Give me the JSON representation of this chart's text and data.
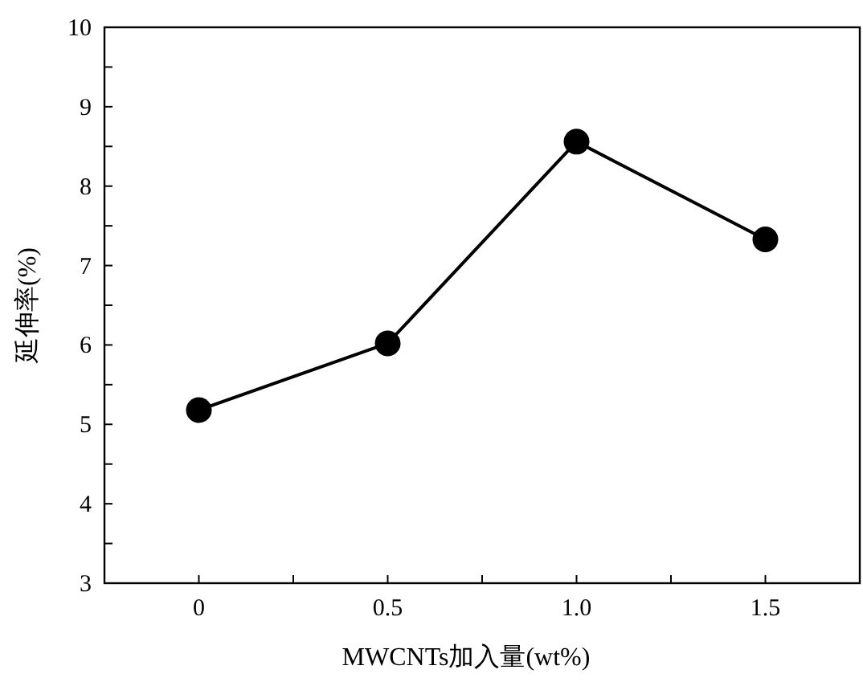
{
  "chart_data": {
    "type": "line",
    "xlabel": "MWCNTs加入量(wt%)",
    "ylabel": "延伸率(%)",
    "x": [
      0,
      0.5,
      1.0,
      1.5
    ],
    "series": [
      {
        "color": "#000000",
        "values": [
          5.18,
          6.02,
          8.56,
          7.33
        ]
      }
    ],
    "marker": "circle",
    "line_style": "solid",
    "grid": false,
    "xlim": [
      -0.25,
      1.75
    ],
    "xticks": [
      0,
      {
        "value": 0.25,
        "label": null
      },
      {
        "value": 0.5,
        "label": "0.5"
      },
      {
        "value": 0.75,
        "label": null
      },
      {
        "value": 1.0,
        "label": "1.0"
      },
      {
        "value": 1.25,
        "label": null
      },
      {
        "value": 1.5,
        "label": "1.5"
      }
    ],
    "ylim": [
      3,
      10
    ],
    "yticks": [
      3,
      {
        "value": 3.5,
        "label": null
      },
      4,
      {
        "value": 4.5,
        "label": null
      },
      5,
      {
        "value": 5.5,
        "label": null
      },
      6,
      {
        "value": 6.5,
        "label": null
      },
      7,
      {
        "value": 7.5,
        "label": null
      },
      8,
      {
        "value": 8.5,
        "label": null
      },
      9,
      {
        "value": 9.5,
        "label": null
      },
      10
    ]
  }
}
